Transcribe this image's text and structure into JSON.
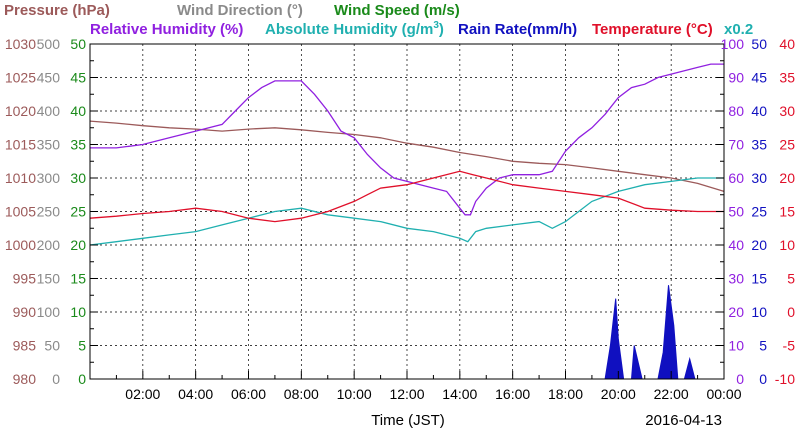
{
  "chart_data": {
    "type": "line",
    "legend": {
      "row1": [
        {
          "label": "Pressure (hPa)",
          "color": "#9c5a5a"
        },
        {
          "label": "Wind Direction (°)",
          "color": "#8a8a8a"
        },
        {
          "label": "Wind Speed (m/s)",
          "color": "#1a8a1a"
        }
      ],
      "row2": [
        {
          "label": "Relative Humidity (%)",
          "color": "#9020e0"
        },
        {
          "label": "Absolute Humidity (g/m",
          "sup": "3",
          "close": ")",
          "color": "#20b0b0"
        },
        {
          "label": "Rain Rate(mm/h)",
          "color": "#1010c0"
        },
        {
          "label": "Temperature (°C)",
          "color": "#e0102a"
        }
      ],
      "scale_note": "x0.2"
    },
    "xlabel": "Time (JST)",
    "date": "2016-04-13",
    "x_ticks": [
      "02:00",
      "04:00",
      "06:00",
      "08:00",
      "10:00",
      "12:00",
      "14:00",
      "16:00",
      "18:00",
      "20:00",
      "22:00",
      "00:00"
    ],
    "x_range": [
      0,
      24
    ],
    "axes": {
      "pressure": {
        "ticks": [
          "1030",
          "1025",
          "1020",
          "1015",
          "1010",
          "1005",
          "1000",
          "995",
          "990",
          "985",
          "980"
        ],
        "color": "#9c5a5a",
        "range": [
          980,
          1030
        ]
      },
      "wind_direction": {
        "ticks": [
          "500",
          "450",
          "400",
          "350",
          "300",
          "250",
          "200",
          "150",
          "100",
          "50",
          "0"
        ],
        "color": "#8a8a8a",
        "range": [
          0,
          500
        ]
      },
      "wind_speed": {
        "ticks": [
          "50",
          "45",
          "40",
          "35",
          "30",
          "25",
          "20",
          "15",
          "10",
          "5",
          "0"
        ],
        "color": "#1a8a1a",
        "range": [
          0,
          50
        ]
      },
      "relative_humidity": {
        "ticks": [
          "100",
          "90",
          "80",
          "70",
          "60",
          "50",
          "40",
          "30",
          "20",
          "10",
          "0"
        ],
        "color": "#9020e0",
        "range": [
          0,
          100
        ]
      },
      "rain_rate": {
        "ticks": [
          "50",
          "45",
          "40",
          "35",
          "30",
          "25",
          "20",
          "15",
          "10",
          "5",
          "0"
        ],
        "color": "#1010c0",
        "range": [
          0,
          50
        ]
      },
      "temperature": {
        "ticks": [
          "40",
          "35",
          "30",
          "25",
          "20",
          "15",
          "10",
          "5",
          "0",
          "-5",
          "-10"
        ],
        "color": "#e0102a",
        "range": [
          -10,
          40
        ]
      }
    },
    "series": [
      {
        "name": "Pressure (hPa)",
        "axis": "pressure",
        "color": "#9c5a5a",
        "x": [
          0,
          1,
          2,
          3,
          4,
          5,
          6,
          7,
          8,
          9,
          10,
          11,
          12,
          13,
          14,
          15,
          16,
          17,
          18,
          19,
          20,
          21,
          22,
          23,
          24
        ],
        "values": [
          1018.5,
          1018.2,
          1017.8,
          1017.5,
          1017.3,
          1017.0,
          1017.3,
          1017.5,
          1017.2,
          1016.8,
          1016.5,
          1016.0,
          1015.2,
          1014.6,
          1013.8,
          1013.2,
          1012.5,
          1012.2,
          1012.0,
          1011.5,
          1011.0,
          1010.5,
          1010.0,
          1009.2,
          1008.0
        ]
      },
      {
        "name": "Relative Humidity (%)",
        "axis": "relative_humidity",
        "color": "#9020e0",
        "x": [
          0,
          1,
          2,
          3,
          4,
          5,
          5.5,
          6,
          6.5,
          7,
          7.5,
          8,
          8.5,
          9,
          9.5,
          10,
          10.5,
          11,
          11.5,
          12,
          12.5,
          13,
          13.5,
          14,
          14.2,
          14.4,
          14.6,
          15,
          15.5,
          16,
          16.5,
          17,
          17.5,
          18,
          18.5,
          19,
          19.5,
          20,
          20.5,
          21,
          21.5,
          22,
          22.5,
          23,
          23.5,
          24
        ],
        "values": [
          69,
          69,
          70,
          72,
          74,
          76,
          80,
          84,
          87,
          89,
          89,
          89,
          85,
          80,
          74,
          72,
          67,
          63,
          60,
          59,
          58,
          57,
          56,
          51,
          49,
          49,
          53,
          57,
          60,
          61,
          61,
          61,
          62,
          68,
          72,
          75,
          79,
          84,
          87,
          88,
          90,
          91,
          92,
          93,
          94,
          94
        ]
      },
      {
        "name": "Absolute Humidity (g/m3)",
        "axis": "relative_humidity",
        "color": "#20b0b0",
        "x": [
          0,
          1,
          2,
          3,
          4,
          5,
          6,
          7,
          8,
          9,
          10,
          11,
          12,
          13,
          14,
          14.3,
          14.6,
          15,
          16,
          17,
          17.5,
          18,
          18.5,
          19,
          20,
          21,
          22,
          23,
          24
        ],
        "values": [
          40,
          41,
          42,
          43,
          44,
          46,
          48,
          50,
          51,
          49,
          48,
          47,
          45,
          44,
          42,
          41,
          44,
          45,
          46,
          47,
          45,
          47,
          50,
          53,
          56,
          58,
          59,
          60,
          60
        ]
      },
      {
        "name": "Temperature (°C)",
        "axis": "temperature",
        "color": "#e0102a",
        "x": [
          0,
          1,
          2,
          3,
          4,
          5,
          6,
          7,
          8,
          9,
          10,
          10.5,
          11,
          12,
          13,
          14,
          14.5,
          15,
          16,
          17,
          18,
          19,
          20,
          21,
          22,
          23,
          24
        ],
        "values": [
          14,
          14.3,
          14.7,
          15,
          15.5,
          15,
          14,
          13.5,
          14,
          15,
          16.5,
          17.5,
          18.5,
          19,
          20,
          21,
          20.5,
          20,
          19,
          18.5,
          18,
          17.5,
          17,
          15.5,
          15.2,
          15,
          15
        ]
      },
      {
        "name": "Rain Rate(mm/h)",
        "axis": "rain_rate",
        "color": "#1010c0",
        "x": [
          0,
          19.5,
          19.7,
          19.9,
          20.0,
          20.2,
          20.5,
          20.6,
          20.9,
          21.1,
          21.3,
          21.5,
          21.7,
          21.9,
          22.1,
          22.25,
          22.5,
          22.7,
          22.9,
          23.1,
          24
        ],
        "values": [
          0,
          0,
          5,
          12,
          6,
          0,
          0,
          5,
          0,
          0,
          0,
          0,
          4,
          14,
          8,
          0,
          0,
          3,
          0,
          0,
          0
        ]
      }
    ],
    "grid": true
  }
}
